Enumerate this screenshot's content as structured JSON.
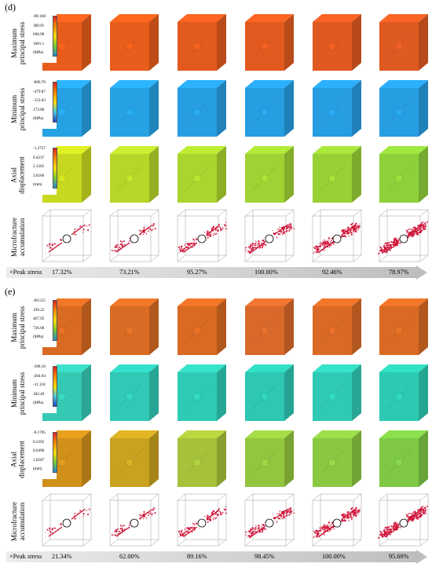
{
  "figure": {
    "panels": [
      {
        "letter": "(d)",
        "rows": [
          {
            "key": "max",
            "label": "Maximum\nprincipal stress",
            "scale": [
              "-89.168",
              "300.91",
              "690.99",
              "1081.1",
              "(MPa)"
            ],
            "colors": [
              "#e85d1b",
              "#e85d1b",
              "#e35a1e",
              "#e25a1f",
              "#e05920",
              "#df5a22"
            ]
          },
          {
            "key": "min",
            "label": "Minimum\nprincipal stress",
            "scale": [
              "-806.70",
              "-479.87",
              "-153.03",
              "173.80",
              "(MPa)"
            ],
            "colors": [
              "#26a2e4",
              "#26a2e4",
              "#279ee2",
              "#279de2",
              "#279de2",
              "#279de2"
            ]
          },
          {
            "key": "axial",
            "label": "Axial\ndisplacement",
            "scale": [
              "-1.2727",
              "0.4237",
              "2.1201",
              "3.8166",
              "(mm)"
            ],
            "colors": [
              "#c8d81f",
              "#b6d62a",
              "#aad42e",
              "#9fd232",
              "#98d036",
              "#8ed03a"
            ]
          },
          {
            "key": "micro",
            "label": "Microfracture\naccumulation"
          }
        ],
        "peak_label": "×Peak stress",
        "peaks": [
          "17.32%",
          "73.21%",
          "95.27%",
          "100.00%",
          "92.46%",
          "78.97%"
        ]
      },
      {
        "letter": "(e)",
        "rows": [
          {
            "key": "max",
            "label": "Maximum\nprincipal stress",
            "scale": [
              "-69.515",
              "199.22",
              "467.95",
              "736.68",
              "(MPa)"
            ],
            "colors": [
              "#d86a22",
              "#d96c24",
              "#d96a22",
              "#d8692a",
              "#d96a26",
              "#d96a24"
            ]
          },
          {
            "key": "min",
            "label": "Minimum\nprincipal stress",
            "scale": [
              "-398.16",
              "-204.64",
              "-11.118",
              "182.40",
              "(MPa)"
            ],
            "colors": [
              "#35c9b4",
              "#2fc9b6",
              "#2ecbb4",
              "#2dc7b2",
              "#2fcab4",
              "#2ccab2"
            ]
          },
          {
            "key": "axial",
            "label": "Axial\ndisplacement",
            "scale": [
              "-0.1705",
              "0.2392",
              "0.6490",
              "1.0587",
              "(mm)"
            ],
            "colors": [
              "#d0901a",
              "#c9a220",
              "#a6c23a",
              "#93c63e",
              "#8bc842",
              "#7ec846"
            ]
          },
          {
            "key": "micro",
            "label": "Microfracture\naccumulation"
          }
        ],
        "peak_label": "×Peak stress",
        "peaks": [
          "21.34%",
          "62.00%",
          "89.16%",
          "98.45%",
          "100.00%",
          "95.69%"
        ]
      }
    ]
  }
}
